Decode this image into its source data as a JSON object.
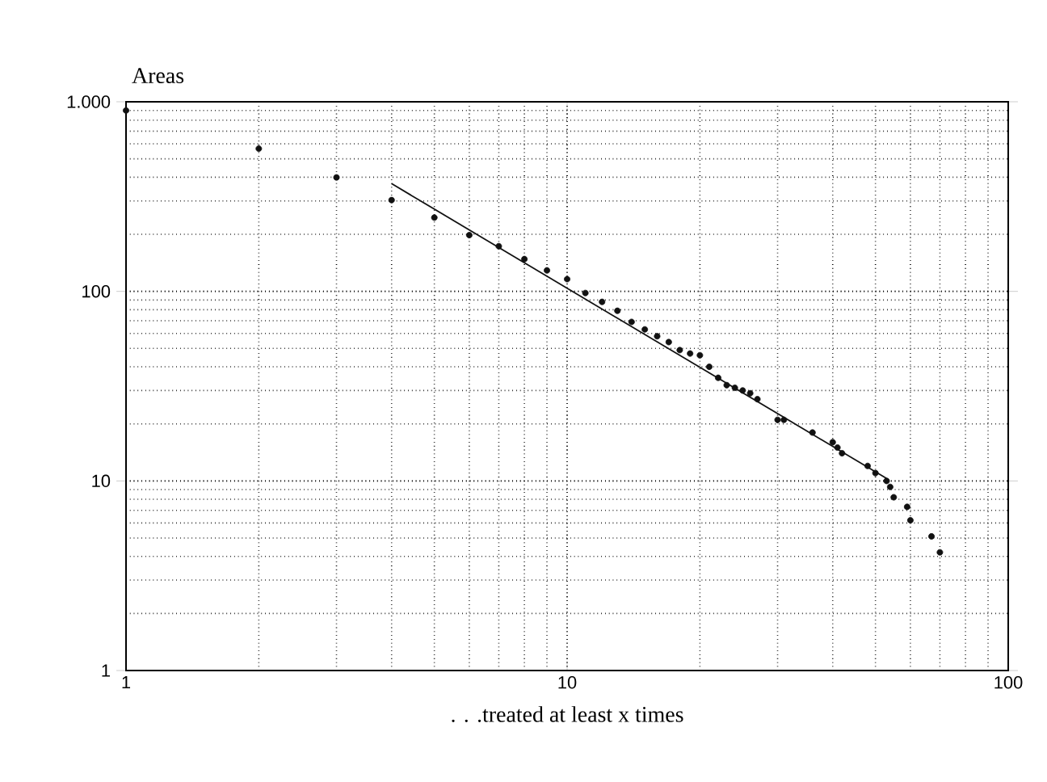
{
  "chart_data": {
    "type": "scatter",
    "ylabel": "Areas",
    "xlabel": ". . .treated at least x times",
    "log": "xy",
    "grid": true,
    "marker": "circle",
    "xlim": [
      1,
      100
    ],
    "ylim": [
      1,
      1000
    ],
    "xticks": [
      1,
      10,
      100
    ],
    "yticks": [
      1,
      10,
      100,
      {
        "value": 1000,
        "label": "1.000"
      }
    ],
    "series": [
      {
        "color": "#111111",
        "x": [
          1,
          2,
          3,
          4,
          5,
          6,
          7,
          8,
          9,
          10,
          11,
          12,
          13,
          14,
          15,
          16,
          17,
          18,
          19,
          20,
          21,
          22,
          23,
          24,
          25,
          26,
          27,
          30,
          31,
          36,
          40,
          41,
          42,
          48,
          50,
          53,
          54,
          55,
          59,
          60,
          67,
          70
        ],
        "values": [
          900,
          566,
          399,
          303,
          245,
          198,
          173,
          148,
          129,
          116,
          98,
          88,
          79,
          69,
          63,
          58,
          54,
          49,
          47,
          46,
          40,
          35,
          32,
          31,
          30,
          29,
          27,
          21,
          21,
          18,
          16,
          15,
          14,
          12,
          11,
          10,
          9.3,
          8.2,
          7.3,
          6.2,
          5.1,
          4.2
        ]
      },
      {
        "type": "line",
        "color": "#111111",
        "marker": "none",
        "x": [
          4,
          53
        ],
        "values": [
          370,
          10.3
        ]
      }
    ]
  }
}
